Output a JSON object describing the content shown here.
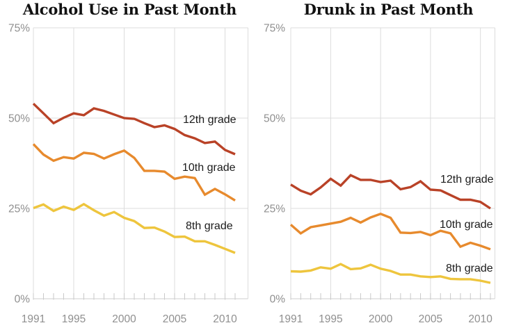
{
  "figure_title": "",
  "chart_data": [
    {
      "type": "line",
      "title": "Alcohol Use in Past Month",
      "xlabel": "",
      "ylabel": "",
      "ylim": [
        0,
        75
      ],
      "grid": true,
      "legend_position": "inline-right",
      "y_tick_values": [
        75,
        50,
        25,
        0
      ],
      "y_tick_labels": [
        "75%",
        "50%",
        "25%",
        "0%"
      ],
      "x_tick_labels": [
        "1991",
        "1995",
        "2000",
        "2005",
        "2010"
      ],
      "x": [
        1991,
        1992,
        1993,
        1994,
        1995,
        1996,
        1997,
        1998,
        1999,
        2000,
        2001,
        2002,
        2003,
        2004,
        2005,
        2006,
        2007,
        2008,
        2009,
        2010,
        2011
      ],
      "series": [
        {
          "name": "12th grade",
          "color": "#b94227",
          "values": [
            54.0,
            51.3,
            48.6,
            50.1,
            51.3,
            50.8,
            52.7,
            52.0,
            51.0,
            50.0,
            49.8,
            48.6,
            47.5,
            48.0,
            47.0,
            45.3,
            44.4,
            43.1,
            43.5,
            41.2,
            40.0
          ]
        },
        {
          "name": "10th grade",
          "color": "#e78a2d",
          "values": [
            42.8,
            39.9,
            38.2,
            39.2,
            38.8,
            40.4,
            40.1,
            38.8,
            40.0,
            41.0,
            39.0,
            35.4,
            35.4,
            35.2,
            33.2,
            33.8,
            33.4,
            28.8,
            30.4,
            28.9,
            27.2
          ]
        },
        {
          "name": "8th grade",
          "color": "#eec53d",
          "values": [
            25.1,
            26.1,
            24.3,
            25.5,
            24.6,
            26.2,
            24.5,
            23.0,
            24.0,
            22.4,
            21.5,
            19.6,
            19.7,
            18.6,
            17.1,
            17.2,
            15.9,
            15.9,
            14.9,
            13.8,
            12.7
          ]
        }
      ]
    },
    {
      "type": "line",
      "title": "Drunk in Past Month",
      "xlabel": "",
      "ylabel": "",
      "ylim": [
        0,
        75
      ],
      "grid": true,
      "legend_position": "inline-right",
      "y_tick_values": [
        75,
        50,
        25,
        0
      ],
      "y_tick_labels": [
        "75%",
        "50%",
        "25%",
        "0%"
      ],
      "x_tick_labels": [
        "1991",
        "1995",
        "2000",
        "2005",
        "2010"
      ],
      "x": [
        1991,
        1992,
        1993,
        1994,
        1995,
        1996,
        1997,
        1998,
        1999,
        2000,
        2001,
        2002,
        2003,
        2004,
        2005,
        2006,
        2007,
        2008,
        2009,
        2010,
        2011
      ],
      "series": [
        {
          "name": "12th grade",
          "color": "#b94227",
          "values": [
            31.6,
            29.9,
            28.9,
            30.8,
            33.2,
            31.3,
            34.2,
            32.9,
            32.9,
            32.3,
            32.7,
            30.3,
            30.9,
            32.5,
            30.2,
            30.0,
            28.7,
            27.4,
            27.4,
            26.8,
            25.0
          ]
        },
        {
          "name": "10th grade",
          "color": "#e78a2d",
          "values": [
            20.5,
            18.1,
            19.8,
            20.3,
            20.8,
            21.3,
            22.4,
            21.1,
            22.5,
            23.5,
            22.4,
            18.3,
            18.2,
            18.5,
            17.6,
            18.8,
            18.1,
            14.4,
            15.5,
            14.7,
            13.7
          ]
        },
        {
          "name": "8th grade",
          "color": "#eec53d",
          "values": [
            7.6,
            7.5,
            7.8,
            8.7,
            8.3,
            9.6,
            8.2,
            8.4,
            9.4,
            8.3,
            7.7,
            6.7,
            6.7,
            6.2,
            6.0,
            6.2,
            5.5,
            5.4,
            5.4,
            5.0,
            4.4
          ]
        }
      ]
    }
  ],
  "colors": {
    "grade12": "#b94227",
    "grade10": "#e78a2d",
    "grade8": "#eec53d",
    "gridline": "#dcdcdc",
    "axis_text": "#8f8f8f",
    "title_text": "#111111"
  }
}
